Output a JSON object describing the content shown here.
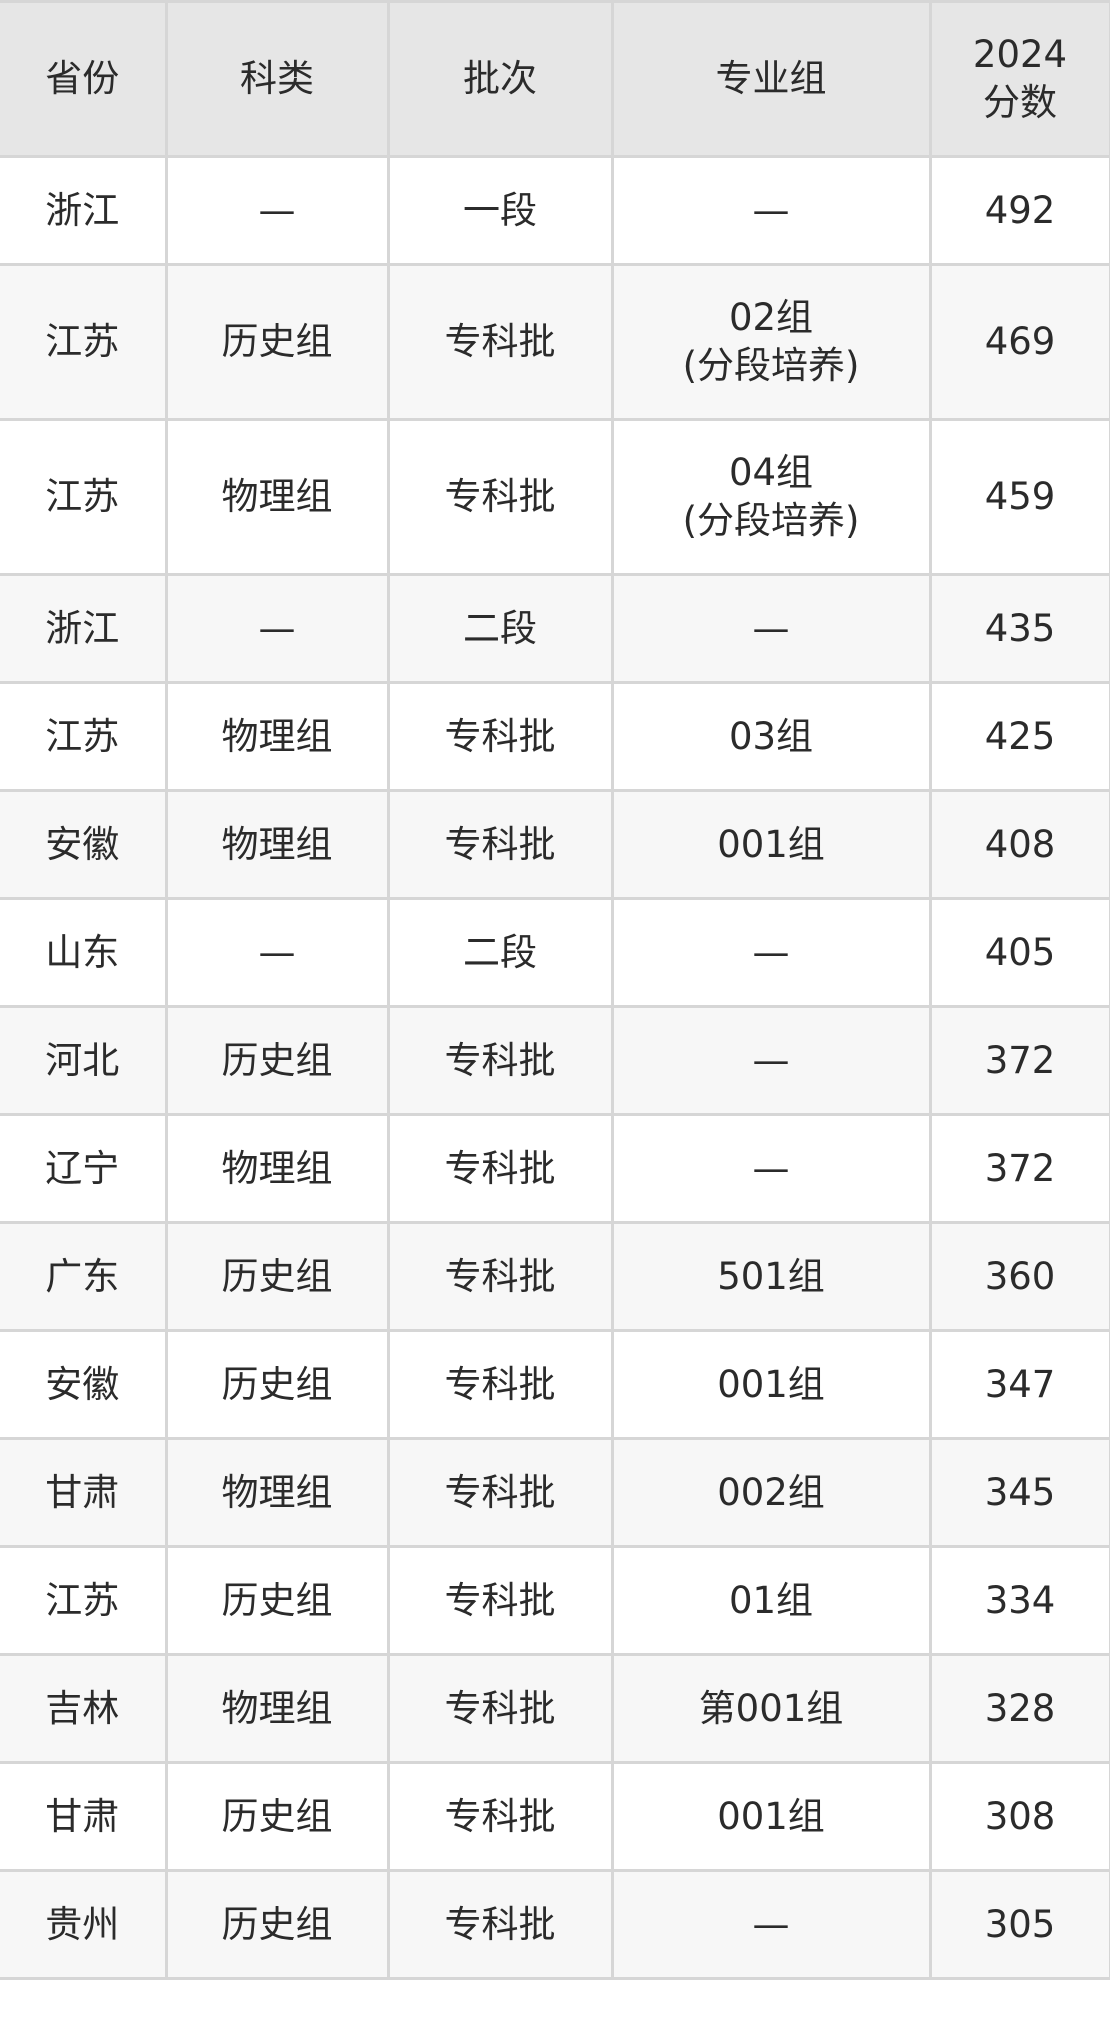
{
  "table": {
    "headers": [
      "省份",
      "科类",
      "批次",
      "专业组",
      [
        "2024",
        "分数"
      ]
    ],
    "rows": [
      [
        "浙江",
        "—",
        "一段",
        "—",
        "492"
      ],
      [
        "江苏",
        "历史组",
        "专科批",
        [
          "02组",
          "(分段培养)"
        ],
        "469"
      ],
      [
        "江苏",
        "物理组",
        "专科批",
        [
          "04组",
          "(分段培养)"
        ],
        "459"
      ],
      [
        "浙江",
        "—",
        "二段",
        "—",
        "435"
      ],
      [
        "江苏",
        "物理组",
        "专科批",
        "03组",
        "425"
      ],
      [
        "安徽",
        "物理组",
        "专科批",
        "001组",
        "408"
      ],
      [
        "山东",
        "—",
        "二段",
        "—",
        "405"
      ],
      [
        "河北",
        "历史组",
        "专科批",
        "—",
        "372"
      ],
      [
        "辽宁",
        "物理组",
        "专科批",
        "—",
        "372"
      ],
      [
        "广东",
        "历史组",
        "专科批",
        "501组",
        "360"
      ],
      [
        "安徽",
        "历史组",
        "专科批",
        "001组",
        "347"
      ],
      [
        "甘肃",
        "物理组",
        "专科批",
        "002组",
        "345"
      ],
      [
        "江苏",
        "历史组",
        "专科批",
        "01组",
        "334"
      ],
      [
        "吉林",
        "物理组",
        "专科批",
        "第001组",
        "328"
      ],
      [
        "甘肃",
        "历史组",
        "专科批",
        "001组",
        "308"
      ],
      [
        "贵州",
        "历史组",
        "专科批",
        "—",
        "305"
      ]
    ]
  }
}
